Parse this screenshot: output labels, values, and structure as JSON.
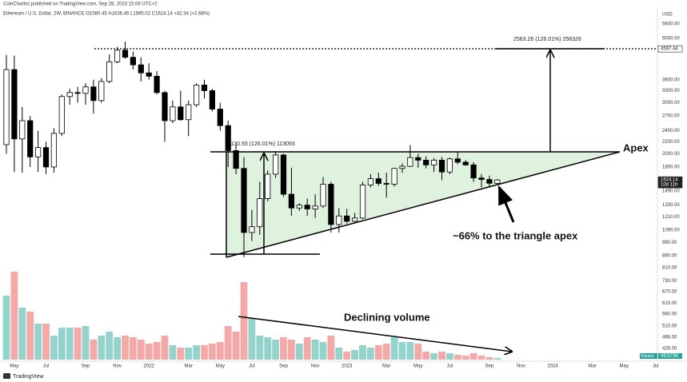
{
  "chart_data": {
    "type": "candlestick",
    "header": "CoinChartist published on TradingView.com, Sep 28, 2023 15:08 UTC+2",
    "title": "Ethereum / U.S. Dollar, 2W, BINANCE  O1580.45 H1636.45 L1565.02 C1624.14 +42.34 (+2.68%)",
    "currency": "USD",
    "footer": "TradingView",
    "log_scale": true,
    "grid": false,
    "up_color": "#ffffff",
    "down_color": "#000000",
    "volume_up_color": "#92d3cb",
    "volume_down_color": "#f5a8a6",
    "categories": [
      null,
      "May",
      null,
      null,
      null,
      "Jul",
      null,
      null,
      null,
      null,
      "Sep",
      null,
      null,
      null,
      "Nov",
      null,
      null,
      null,
      "2022",
      null,
      null,
      null,
      null,
      "Mar",
      null,
      null,
      null,
      "May",
      null,
      null,
      null,
      "Jul",
      null,
      null,
      null,
      "Sep",
      null,
      null,
      null,
      "Nov",
      null,
      null,
      null,
      "2023",
      null,
      null,
      null,
      null,
      "Mar",
      null,
      null,
      null,
      "May",
      null,
      null,
      null,
      "Jul",
      null,
      null,
      null,
      null,
      "Sep",
      null,
      null,
      null,
      "Nov",
      null,
      null,
      null,
      "2024",
      null,
      null,
      null,
      null,
      "Mar",
      null,
      null,
      null,
      "May",
      null,
      null,
      null,
      "Jul"
    ],
    "open": [
      2150,
      3900,
      2250,
      2600,
      1950,
      2100,
      1800,
      2350,
      3150,
      3250,
      3230,
      3400,
      3050,
      3550,
      4150,
      4550,
      4300,
      4050,
      3800,
      3700,
      3250,
      2600,
      2900,
      2620,
      2950,
      3450,
      3300,
      2850,
      2500,
      2050,
      1780,
      1070,
      1120,
      1400,
      1700,
      1980,
      1450,
      1300,
      1330,
      1290,
      1320,
      1570,
      1140,
      1220,
      1170,
      1200,
      1560,
      1640,
      1580,
      1570,
      1780,
      1810,
      1940,
      1900,
      1830,
      1900,
      1730,
      1920,
      1870,
      1830,
      1650,
      1630,
      1580.45,
      null,
      null,
      null,
      null,
      null,
      null,
      null,
      null,
      null,
      null,
      null,
      null,
      null,
      null,
      null,
      null,
      null,
      null,
      null,
      null
    ],
    "high": [
      4380,
      4360,
      2900,
      2700,
      2400,
      2200,
      2450,
      3200,
      3350,
      3400,
      3500,
      3600,
      3650,
      4400,
      4670,
      4870,
      4500,
      4300,
      4100,
      3850,
      3300,
      3050,
      3300,
      3050,
      3500,
      3600,
      3350,
      3000,
      2600,
      2150,
      1950,
      1280,
      1600,
      1750,
      2030,
      2000,
      1790,
      1350,
      1400,
      1450,
      1660,
      1600,
      1300,
      1290,
      1250,
      1600,
      1700,
      1720,
      1720,
      1790,
      1850,
      2140,
      2000,
      1960,
      1930,
      1950,
      1940,
      2030,
      1900,
      1870,
      1700,
      1680,
      1636.45,
      null,
      null,
      null,
      null,
      null,
      null,
      null,
      null,
      null,
      null,
      null,
      null,
      null,
      null,
      null,
      null,
      null,
      null,
      null,
      null
    ],
    "low": [
      2000,
      1730,
      1720,
      1800,
      1730,
      1700,
      1720,
      2300,
      2950,
      3000,
      2950,
      2750,
      3000,
      3500,
      4100,
      4250,
      3900,
      3550,
      3600,
      3200,
      2200,
      2550,
      2600,
      2300,
      2900,
      3100,
      2800,
      2400,
      1800,
      1700,
      880,
      1000,
      1050,
      1370,
      1650,
      1420,
      1220,
      1270,
      1220,
      1200,
      1300,
      1070,
      1070,
      1150,
      1150,
      1190,
      1530,
      1550,
      1410,
      1540,
      1720,
      1800,
      1790,
      1780,
      1730,
      1620,
      1700,
      1840,
      1820,
      1600,
      1530,
      1530,
      1565.02,
      null,
      null,
      null,
      null,
      null,
      null,
      null,
      null,
      null,
      null,
      null,
      null,
      null,
      null,
      null,
      null,
      null,
      null,
      null,
      null
    ],
    "close": [
      3900,
      2250,
      2600,
      1950,
      2100,
      1800,
      2350,
      3150,
      3250,
      3230,
      3400,
      3050,
      3550,
      4150,
      4550,
      4300,
      4050,
      3800,
      3700,
      3250,
      2600,
      2900,
      2620,
      2950,
      3450,
      3300,
      2850,
      2500,
      2050,
      1780,
      1070,
      1120,
      1400,
      1700,
      1980,
      1450,
      1300,
      1330,
      1290,
      1320,
      1570,
      1140,
      1220,
      1170,
      1200,
      1560,
      1640,
      1580,
      1570,
      1780,
      1810,
      1940,
      1900,
      1830,
      1900,
      1730,
      1920,
      1870,
      1830,
      1650,
      1630,
      1581.8,
      1624.14,
      null,
      null,
      null,
      null,
      null,
      null,
      null,
      null,
      null,
      null,
      null,
      null,
      null,
      null,
      null,
      null,
      null,
      null,
      null,
      null
    ],
    "volume": [
      2000000,
      2750000,
      1625000,
      1500000,
      1125000,
      1125000,
      750000,
      1000000,
      1000000,
      1000000,
      1050000,
      625000,
      750000,
      875000,
      700000,
      750000,
      700000,
      625000,
      500000,
      550000,
      750000,
      450000,
      375000,
      375000,
      450000,
      450000,
      500000,
      550000,
      1050000,
      875000,
      2425000,
      1300000,
      750000,
      700000,
      625000,
      700000,
      625000,
      500000,
      700000,
      625000,
      550000,
      750000,
      375000,
      250000,
      300000,
      450000,
      375000,
      450000,
      500000,
      700000,
      550000,
      550000,
      500000,
      250000,
      200000,
      250000,
      200000,
      150000,
      125000,
      200000,
      125000,
      75000,
      49573,
      null,
      null,
      null,
      null,
      null,
      null,
      null,
      null,
      null,
      null,
      null,
      null,
      null,
      null,
      null,
      null,
      null,
      null,
      null,
      null
    ],
    "volume_ylim": [
      0,
      3000000
    ],
    "volume_name": "Volume",
    "volume_last_label": "49.573K",
    "ylim": [
      390,
      6360
    ],
    "yticks": [
      {
        "value": 5600,
        "label": "5600.00"
      },
      {
        "value": 5000,
        "label": "5000.00"
      },
      {
        "value": 3600,
        "label": "3600.00"
      },
      {
        "value": 3300,
        "label": "3300.00"
      },
      {
        "value": 3000,
        "label": "3000.00"
      },
      {
        "value": 2700,
        "label": "2700.00"
      },
      {
        "value": 2400,
        "label": "2400.00"
      },
      {
        "value": 2200,
        "label": "2200.00"
      },
      {
        "value": 2000,
        "label": "2000.00"
      },
      {
        "value": 1800,
        "label": "1800.00"
      },
      {
        "value": 1490,
        "label": "1490.00"
      },
      {
        "value": 1330,
        "label": "1330.00"
      },
      {
        "value": 1210,
        "label": "1210.00"
      },
      {
        "value": 1090,
        "label": "1090.00"
      },
      {
        "value": 990,
        "label": "990.00"
      },
      {
        "value": 890,
        "label": "890.00"
      },
      {
        "value": 810,
        "label": "810.00"
      },
      {
        "value": 730,
        "label": "730.00"
      },
      {
        "value": 670,
        "label": "670.00"
      },
      {
        "value": 610,
        "label": "610.00"
      },
      {
        "value": 560,
        "label": "560.00"
      },
      {
        "value": 510,
        "label": "510.00"
      },
      {
        "value": 466,
        "label": "466.00"
      },
      {
        "value": 426,
        "label": "426.00"
      }
    ],
    "price_markers": [
      {
        "value": 4597.44,
        "label": "4597.44"
      },
      {
        "value": 1624.14,
        "label": "1624.14"
      }
    ],
    "countdown": "10d 11h",
    "annotations": [
      "1130.93 (126.01%) 113093",
      "2563.26 (126.01%) 256326",
      "Apex",
      "~66% to the triangle apex",
      "Declining volume"
    ]
  }
}
